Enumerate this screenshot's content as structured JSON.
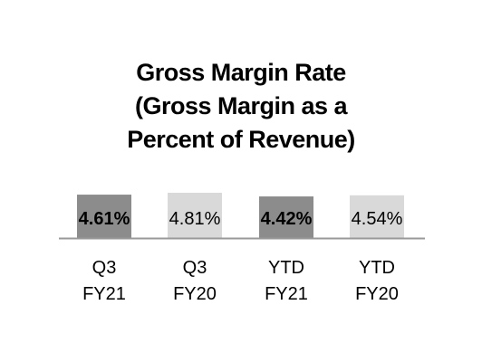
{
  "chart_data": {
    "type": "bar",
    "title_lines": [
      "Gross Margin Rate",
      "(Gross Margin as a",
      "Percent of Revenue)"
    ],
    "categories": [
      [
        "Q3",
        "FY21"
      ],
      [
        "Q3",
        "FY20"
      ],
      [
        "YTD",
        "FY21"
      ],
      [
        "YTD",
        "FY20"
      ]
    ],
    "values": [
      4.61,
      4.81,
      4.42,
      4.54
    ],
    "data_labels": [
      "4.61%",
      "4.81%",
      "4.42%",
      "4.54%"
    ],
    "bold_labels": [
      true,
      false,
      true,
      false
    ],
    "bar_colors": [
      "#8c8c8c",
      "#d9d9d9",
      "#8c8c8c",
      "#d9d9d9"
    ],
    "ylim": [
      0,
      4.81
    ],
    "grid": false,
    "legend": "none",
    "axis_color": "#999999"
  }
}
